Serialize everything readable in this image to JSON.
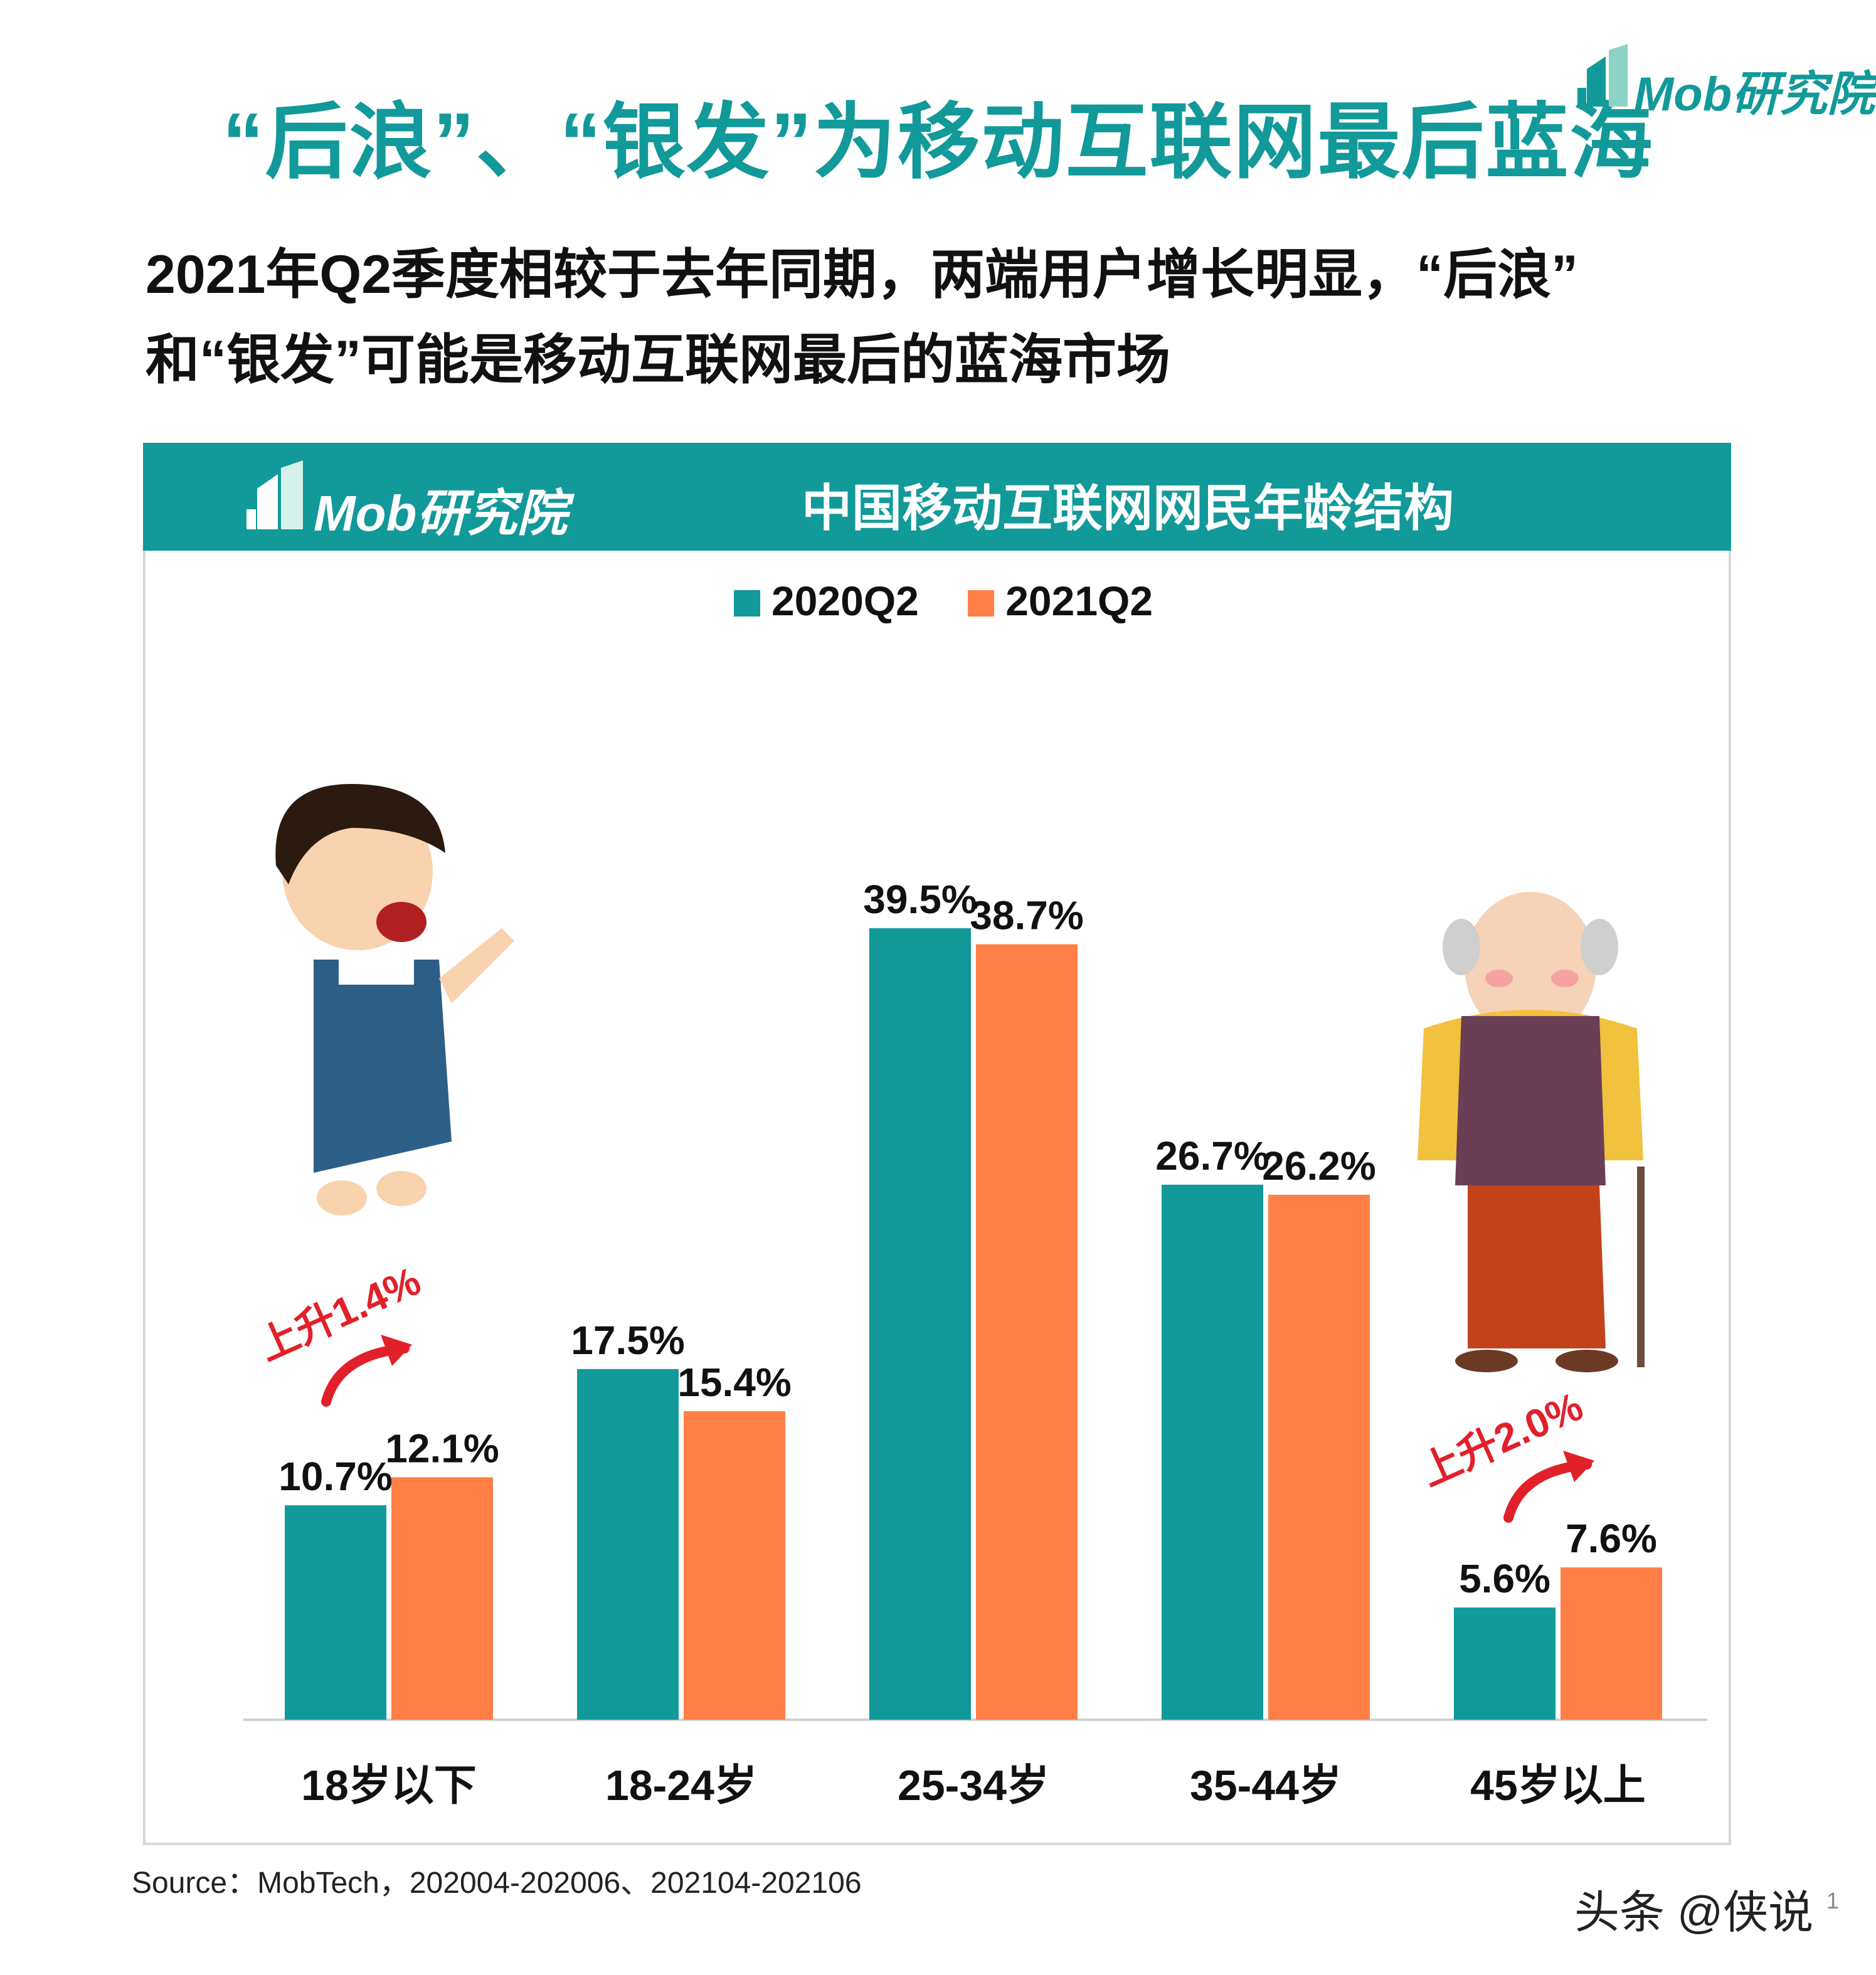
{
  "header": {
    "title": "“后浪”、“银发”为移动互联网最后蓝海",
    "brand": "Mob研究院",
    "subtitle_line1": "2021年Q2季度相较于去年同期，两端用户增长明显，“后浪”",
    "subtitle_line2": "和“银发”可能是移动互联网最后的蓝海市场"
  },
  "panel": {
    "brand": "Mob研究院",
    "title": "中国移动互联网网民年龄结构"
  },
  "colors": {
    "teal": "#12999a",
    "orange": "#ff7f47",
    "annotation_red": "#e2202a"
  },
  "chart_data": {
    "type": "bar",
    "title": "中国移动互联网网民年龄结构",
    "categories": [
      "18岁以下",
      "18-24岁",
      "25-34岁",
      "35-44岁",
      "45岁以上"
    ],
    "series": [
      {
        "name": "2020Q2",
        "values": [
          10.7,
          17.5,
          39.5,
          26.7,
          5.6
        ],
        "labels": [
          "10.7%",
          "17.5%",
          "39.5%",
          "26.7%",
          "5.6%"
        ]
      },
      {
        "name": "2021Q2",
        "values": [
          12.1,
          15.4,
          38.7,
          26.2,
          7.6
        ],
        "labels": [
          "12.1%",
          "15.4%",
          "38.7%",
          "26.2%",
          "7.6%"
        ]
      }
    ],
    "ylim": [
      0,
      45
    ],
    "legend": "top-center",
    "grid": false,
    "annotations": [
      {
        "text": "上升1.4%",
        "category": "18岁以下"
      },
      {
        "text": "上升2.0%",
        "category": "45岁以上"
      }
    ]
  },
  "footer": {
    "source": "Source：MobTech，202004-202006、202104-202106",
    "watermark": "头条 @侠说",
    "page_number": "1"
  }
}
